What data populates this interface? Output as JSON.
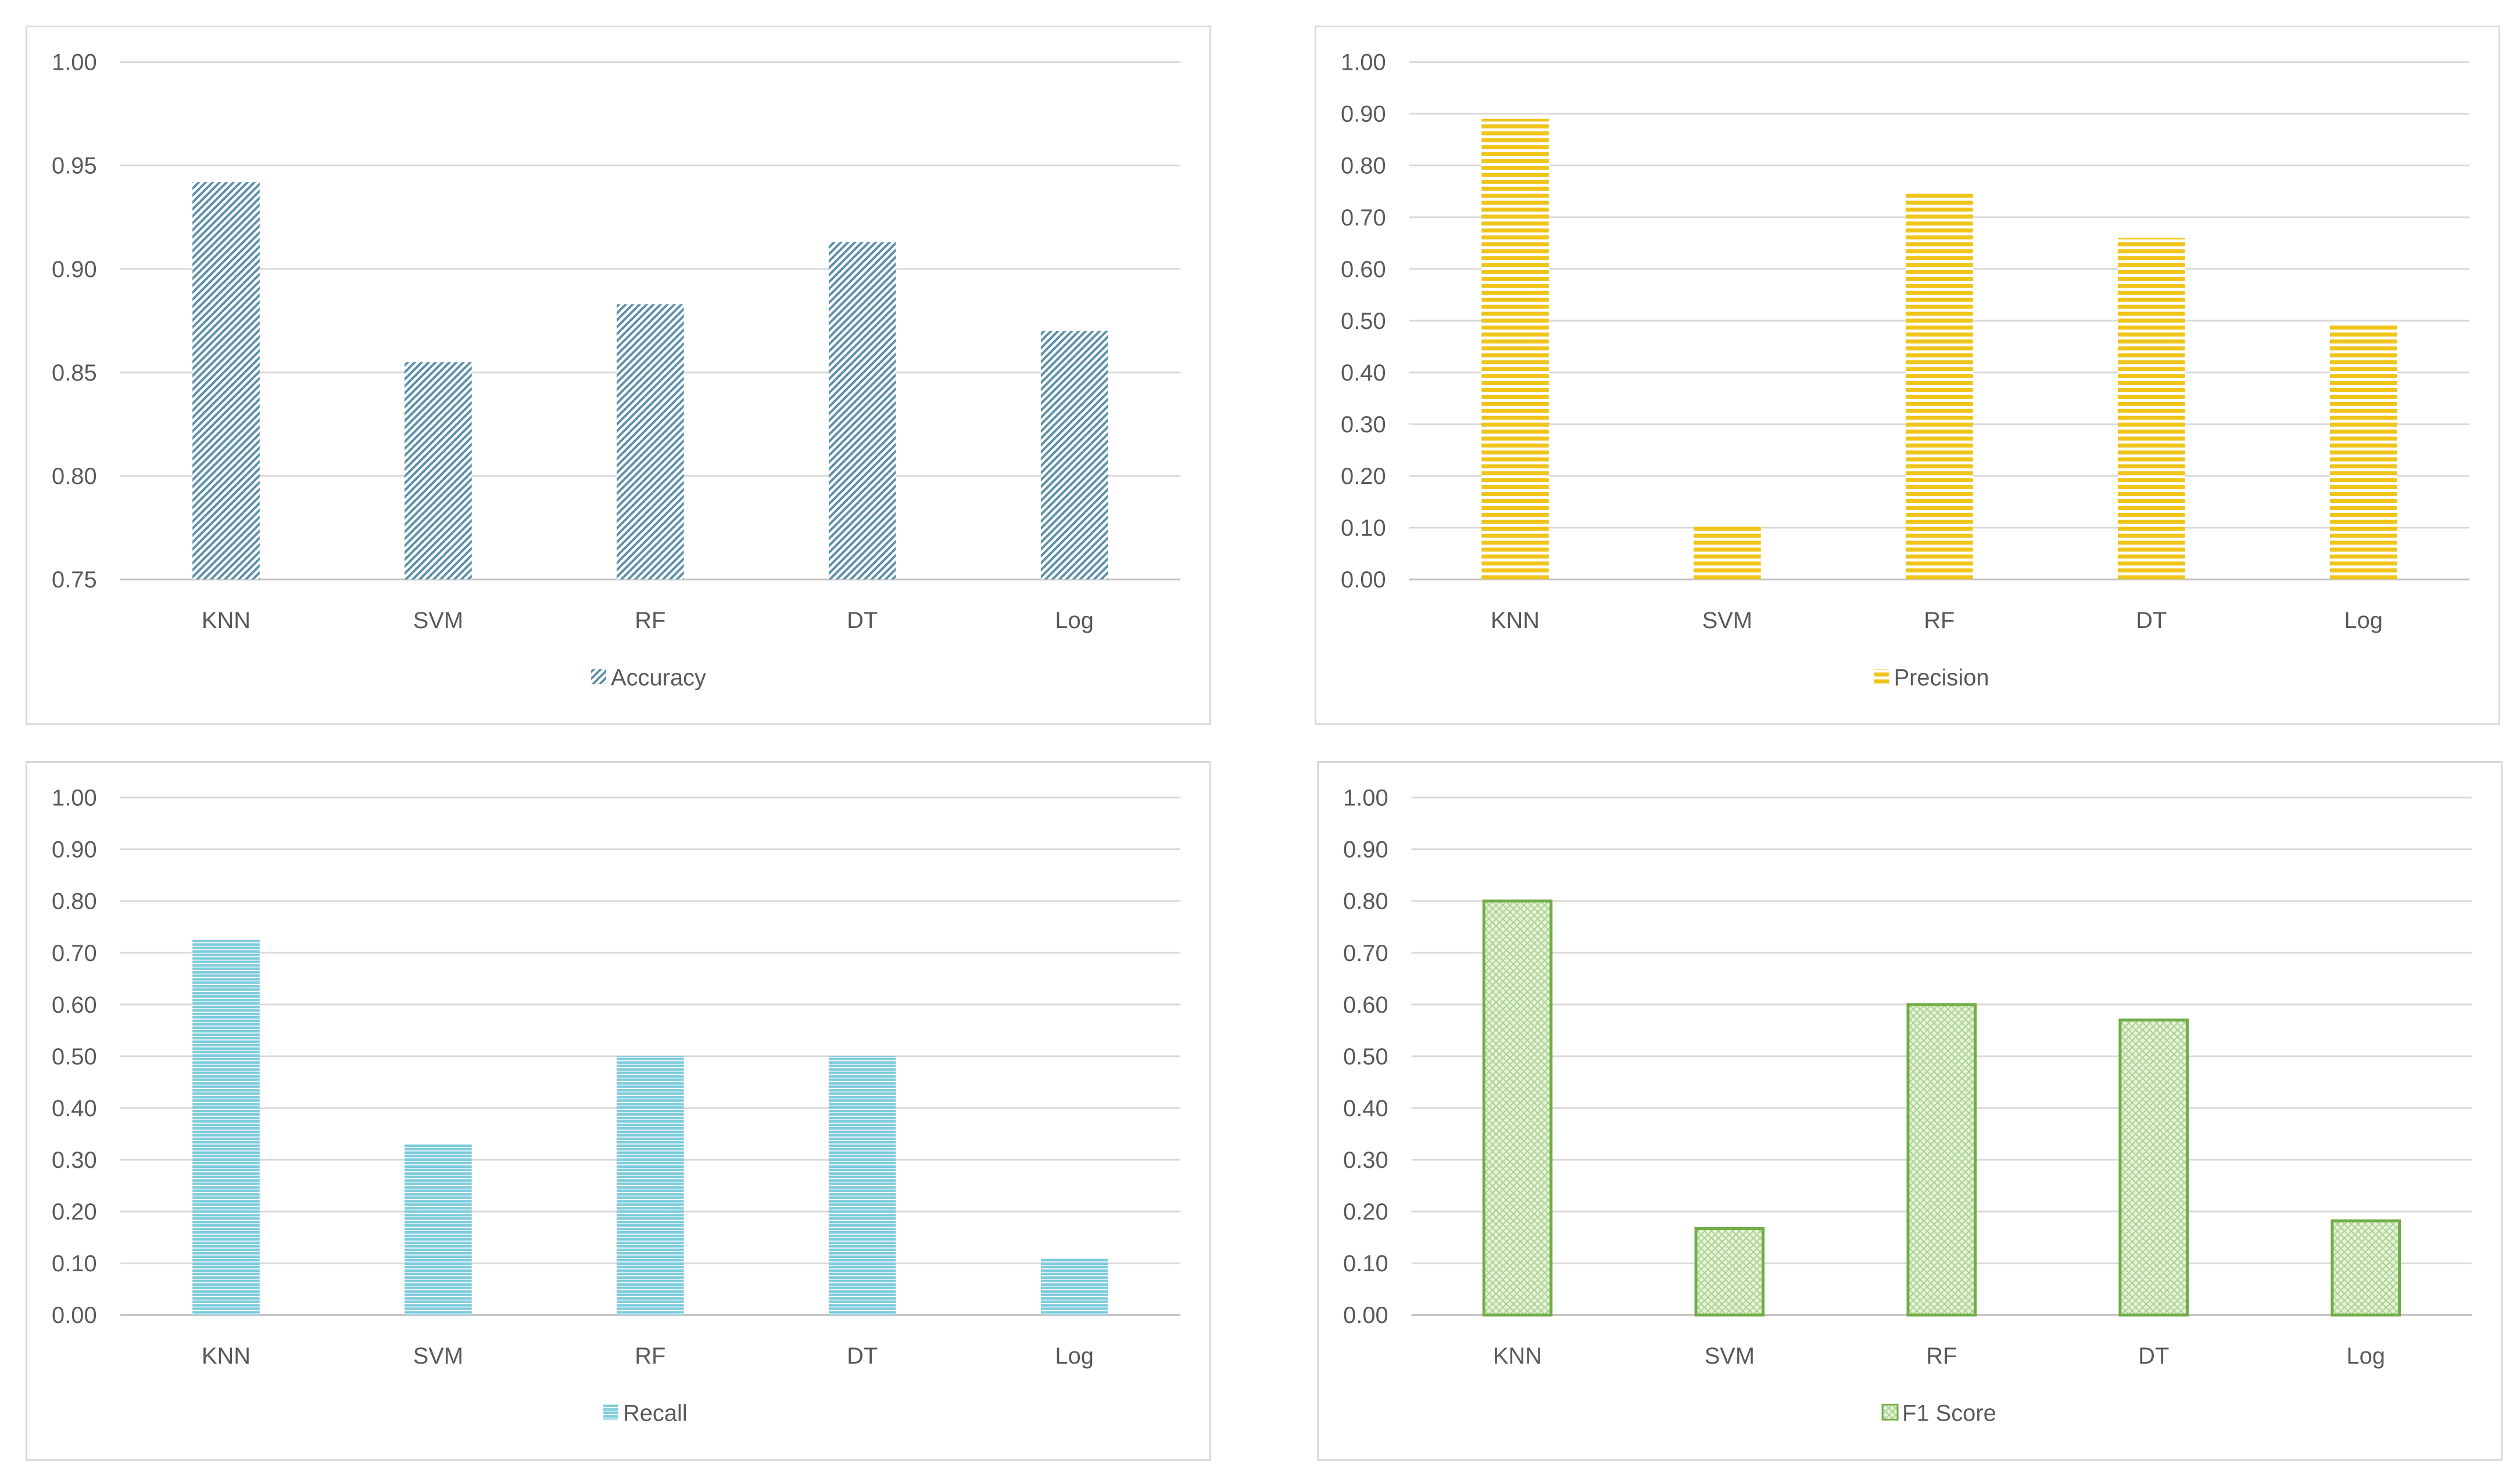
{
  "chart_data": [
    {
      "type": "bar",
      "id": "accuracy",
      "title": "",
      "xlabel": "",
      "ylabel": "",
      "categories": [
        "KNN",
        "SVM",
        "RF",
        "DT",
        "Log"
      ],
      "series": [
        {
          "name": "Accuracy",
          "values": [
            0.942,
            0.855,
            0.883,
            0.913,
            0.87
          ]
        }
      ],
      "ylim": [
        0.75,
        1.0
      ],
      "yticks": [
        "0.75",
        "0.80",
        "0.85",
        "0.90",
        "0.95",
        "1.00"
      ],
      "grid": true,
      "legend": "bottom",
      "color": "#5b8fa8",
      "pattern": "diagonal"
    },
    {
      "type": "bar",
      "id": "precision",
      "title": "",
      "xlabel": "",
      "ylabel": "",
      "categories": [
        "KNN",
        "SVM",
        "RF",
        "DT",
        "Log"
      ],
      "series": [
        {
          "name": "Precision",
          "values": [
            0.89,
            0.105,
            0.75,
            0.66,
            0.495
          ]
        }
      ],
      "ylim": [
        0.0,
        1.0
      ],
      "yticks": [
        "0.00",
        "0.10",
        "0.20",
        "0.30",
        "0.40",
        "0.50",
        "0.60",
        "0.70",
        "0.80",
        "0.90",
        "1.00"
      ],
      "grid": true,
      "legend": "bottom",
      "color": "#f0c419",
      "pattern": "horizontal"
    },
    {
      "type": "bar",
      "id": "recall",
      "title": "",
      "xlabel": "",
      "ylabel": "",
      "categories": [
        "KNN",
        "SVM",
        "RF",
        "DT",
        "Log"
      ],
      "series": [
        {
          "name": "Recall",
          "values": [
            0.725,
            0.33,
            0.5,
            0.5,
            0.11
          ]
        }
      ],
      "ylim": [
        0.0,
        1.0
      ],
      "yticks": [
        "0.00",
        "0.10",
        "0.20",
        "0.30",
        "0.40",
        "0.50",
        "0.60",
        "0.70",
        "0.80",
        "0.90",
        "1.00"
      ],
      "grid": true,
      "legend": "bottom",
      "color": "#7ecbdb",
      "pattern": "fine-horizontal"
    },
    {
      "type": "bar",
      "id": "f1",
      "title": "",
      "xlabel": "",
      "ylabel": "",
      "categories": [
        "KNN",
        "SVM",
        "RF",
        "DT",
        "Log"
      ],
      "series": [
        {
          "name": "F1 Score",
          "values": [
            0.8,
            0.167,
            0.6,
            0.57,
            0.182
          ]
        }
      ],
      "ylim": [
        0.0,
        1.0
      ],
      "yticks": [
        "0.00",
        "0.10",
        "0.20",
        "0.30",
        "0.40",
        "0.50",
        "0.60",
        "0.70",
        "0.80",
        "0.90",
        "1.00"
      ],
      "grid": true,
      "legend": "bottom",
      "color": "#70ad47",
      "pattern": "crosshatch"
    }
  ]
}
